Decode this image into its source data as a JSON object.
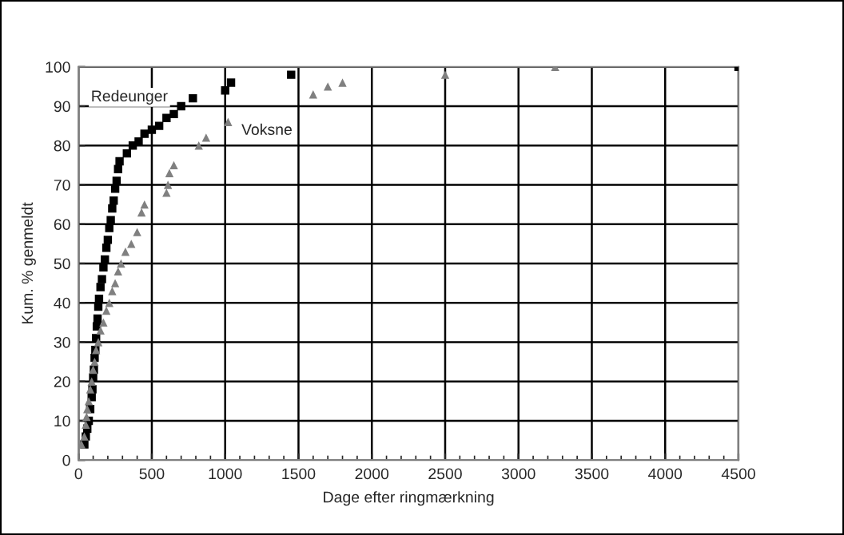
{
  "chart_data": {
    "type": "scatter",
    "xlabel": "Dage efter ringmærkning",
    "ylabel": "Kum. % genmeldt",
    "xlim": [
      0,
      4500
    ],
    "ylim": [
      0,
      100
    ],
    "xticks": [
      0,
      500,
      1000,
      1500,
      2000,
      2500,
      3000,
      3500,
      4000,
      4500
    ],
    "yticks": [
      0,
      10,
      20,
      30,
      40,
      50,
      60,
      70,
      80,
      90,
      100
    ],
    "grid": true,
    "series": [
      {
        "name": "Redeunger",
        "color": "#000000",
        "marker": "square",
        "x": [
          40,
          50,
          60,
          70,
          80,
          90,
          95,
          100,
          105,
          110,
          115,
          120,
          125,
          130,
          135,
          140,
          150,
          160,
          170,
          180,
          190,
          200,
          210,
          220,
          230,
          240,
          250,
          260,
          270,
          280,
          330,
          370,
          410,
          450,
          500,
          550,
          600,
          650,
          700,
          780,
          1000,
          1040,
          1450,
          4500
        ],
        "values": [
          4,
          6,
          8,
          10,
          13,
          16,
          18,
          21,
          23,
          26,
          28,
          31,
          34,
          36,
          39,
          41,
          44,
          46,
          49,
          51,
          54,
          56,
          59,
          61,
          64,
          66,
          69,
          71,
          74,
          76,
          78,
          80,
          81,
          83,
          84,
          85,
          87,
          88,
          90,
          92,
          94,
          96,
          98,
          100
        ]
      },
      {
        "name": "Voksne",
        "color": "#808080",
        "marker": "triangle",
        "x": [
          20,
          40,
          50,
          55,
          60,
          70,
          80,
          90,
          100,
          110,
          120,
          135,
          150,
          170,
          190,
          210,
          230,
          250,
          270,
          290,
          320,
          360,
          400,
          430,
          450,
          600,
          610,
          620,
          650,
          820,
          870,
          1020,
          1600,
          1700,
          1800,
          2500,
          3250
        ],
        "values": [
          4,
          6,
          9,
          11,
          13,
          15,
          18,
          20,
          23,
          25,
          28,
          30,
          33,
          35,
          38,
          40,
          43,
          45,
          48,
          50,
          53,
          55,
          58,
          63,
          65,
          68,
          70,
          73,
          75,
          80,
          82,
          86,
          93,
          95,
          96,
          98,
          100
        ]
      }
    ]
  }
}
